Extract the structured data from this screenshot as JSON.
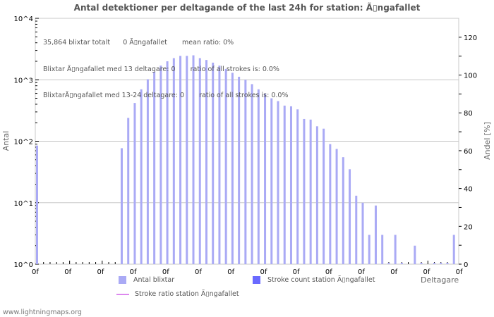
{
  "title": "Antal detektioner per deltagande of the last 24h for station: Ã▯ngafallet",
  "info_lines": [
    "35,864 blixtar totalt      0 Ã▯ngafallet       mean ratio: 0%",
    "Blixtar Ã▯ngafallet med 13 deltagare: 0       ratio of all strokes is: 0.0%",
    "BlixtarÃ▯ngafallet med 13-24 deltagare: 0       ratio of all strokes is: 0.0%"
  ],
  "legend": {
    "antal": "Antal blixtar",
    "stroke_count": "Stroke count station Ã▯ngafallet",
    "stroke_ratio": "Stroke ratio station Ã▯ngafallet"
  },
  "footer": "www.lightningmaps.org",
  "colors": {
    "bar": "#aaaaf5",
    "stroke_count": "#6a6aff",
    "ratio_line": "#dd88ee",
    "grid": "#c8c8c8"
  },
  "chart_data": {
    "type": "bar",
    "title": "Antal detektioner per deltagande of the last 24h for station: Ã▯ngafallet",
    "xlabel": "Deltagare",
    "ylabel": "Antal",
    "y2label": "Andel [%]",
    "yscale": "log",
    "ylim": [
      1,
      10000
    ],
    "y_ticks": [
      "10^0",
      "10^1",
      "10^2",
      "10^3",
      "10^4"
    ],
    "y2lim": [
      0,
      130
    ],
    "y2_ticks": [
      "0",
      "20",
      "40",
      "60",
      "80",
      "100",
      "120"
    ],
    "x_tick_labels": [
      "0f",
      "0f",
      "0f",
      "0f",
      "0f",
      "0f",
      "0f",
      "0f",
      "0f",
      "0f",
      "0f",
      "0f",
      "0f",
      "0f"
    ],
    "grid": true,
    "legend_position": "bottom",
    "x": [
      0,
      1,
      2,
      3,
      4,
      5,
      6,
      7,
      8,
      9,
      10,
      11,
      12,
      13,
      14,
      15,
      16,
      17,
      18,
      19,
      20,
      21,
      22,
      23,
      24,
      25,
      26,
      27,
      28,
      29,
      30,
      31,
      32,
      33,
      34,
      35,
      36,
      37,
      38,
      39,
      40,
      41,
      42,
      43,
      44,
      45,
      46,
      47,
      48,
      49,
      50,
      51,
      52,
      53,
      54,
      55,
      56,
      57,
      58,
      59,
      60,
      61,
      62,
      63,
      64
    ],
    "series": [
      {
        "name": "Antal blixtar",
        "values": [
          85,
          0,
          0,
          0,
          0,
          0,
          0,
          0,
          0,
          0,
          0,
          0,
          0,
          77,
          240,
          420,
          700,
          1020,
          1350,
          1700,
          2000,
          2250,
          2450,
          2450,
          2500,
          2250,
          2100,
          1900,
          1700,
          1500,
          1300,
          1120,
          1000,
          850,
          700,
          600,
          500,
          450,
          380,
          370,
          330,
          230,
          225,
          175,
          160,
          90,
          75,
          55,
          35,
          13,
          10,
          3,
          9,
          3,
          1,
          3,
          1,
          0,
          2,
          1,
          0,
          1,
          1,
          1,
          3
        ]
      },
      {
        "name": "Stroke count station Ã▯ngafallet",
        "values": []
      },
      {
        "name": "Stroke ratio station Ã▯ngafallet",
        "values": []
      }
    ]
  }
}
